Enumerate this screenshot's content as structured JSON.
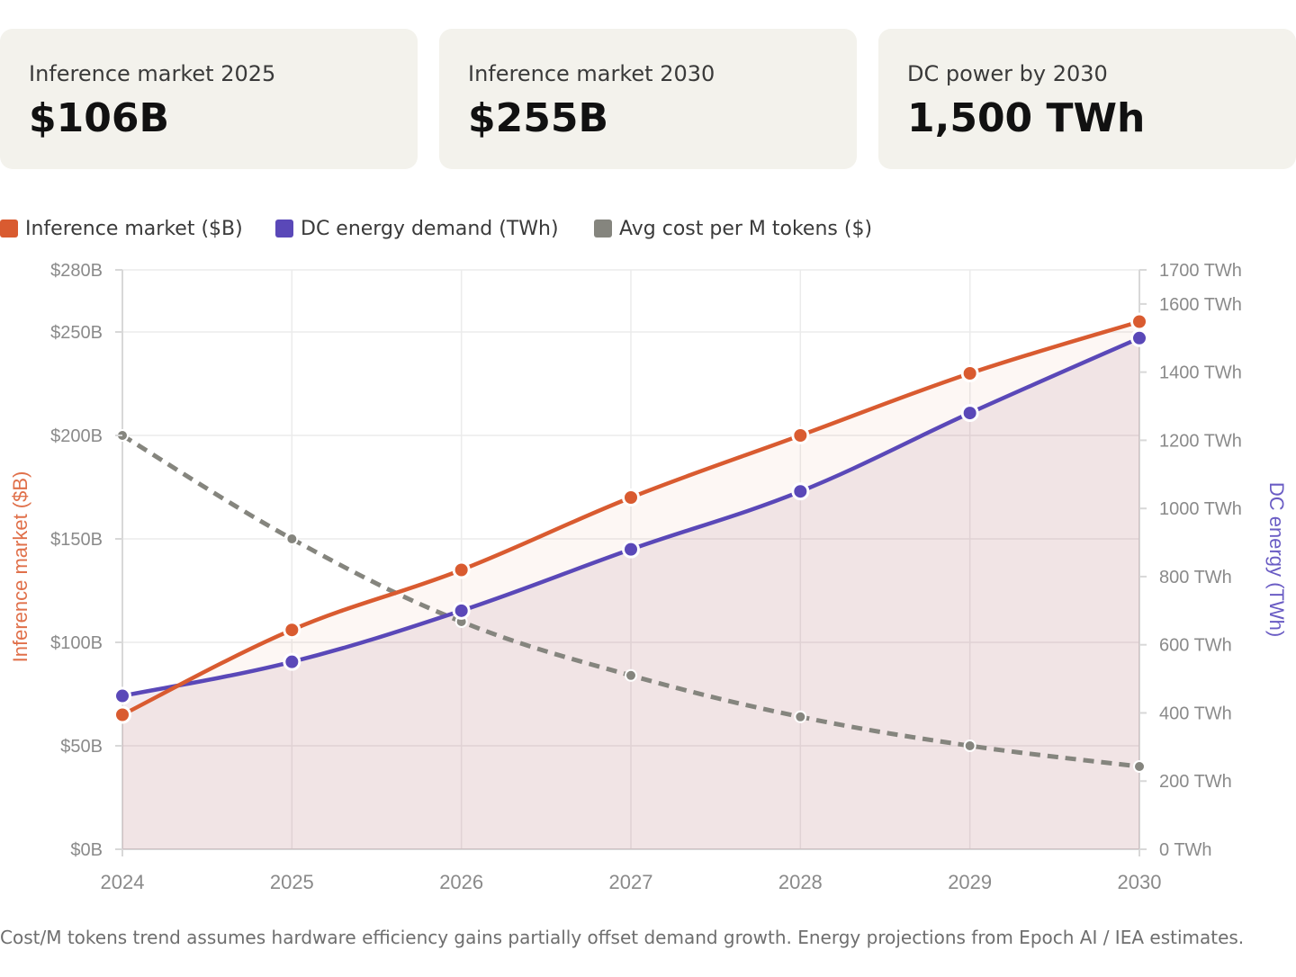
{
  "cards": [
    {
      "label": "Inference market 2025",
      "value": "$106B"
    },
    {
      "label": "Inference market 2030",
      "value": "$255B"
    },
    {
      "label": "DC power by 2030",
      "value": "1,500 TWh"
    }
  ],
  "legend": [
    {
      "label": "Inference market ($B)",
      "color": "#d95b30"
    },
    {
      "label": "DC energy demand (TWh)",
      "color": "#5a48b8"
    },
    {
      "label": "Avg cost per M tokens ($)",
      "color": "#85857e"
    }
  ],
  "footnote": "Cost/M tokens trend assumes hardware efficiency gains partially offset demand growth. Energy projections from Epoch AI / IEA estimates.",
  "chart_data": {
    "type": "line",
    "x": [
      "2024",
      "2025",
      "2026",
      "2027",
      "2028",
      "2029",
      "2030"
    ],
    "series": [
      {
        "name": "Inference market ($B)",
        "axis": "left",
        "values": [
          65,
          106,
          135,
          170,
          200,
          230,
          255
        ],
        "color": "#d95b30",
        "style": "solid"
      },
      {
        "name": "DC energy demand (TWh)",
        "axis": "right",
        "values": [
          450,
          550,
          700,
          880,
          1050,
          1280,
          1500
        ],
        "color": "#5a48b8",
        "style": "solid",
        "fill": true
      },
      {
        "name": "Avg cost per M tokens ($)",
        "axis": "left",
        "values": [
          200,
          150,
          110,
          84,
          64,
          50,
          40
        ],
        "color": "#85857e",
        "style": "dashed"
      }
    ],
    "left_axis": {
      "label": "Inference market ($B)",
      "min": 0,
      "max": 280,
      "ticks": [
        0,
        50,
        100,
        150,
        200,
        250,
        280
      ],
      "tick_labels": [
        "$0B",
        "$50B",
        "$100B",
        "$150B",
        "$200B",
        "$250B",
        "$280B"
      ],
      "color": "#e0704a"
    },
    "right_axis": {
      "label": "DC energy (TWh)",
      "min": 0,
      "max": 1700,
      "ticks": [
        0,
        200,
        400,
        600,
        800,
        1000,
        1200,
        1400,
        1600,
        1700
      ],
      "tick_labels": [
        "0 TWh",
        "200 TWh",
        "400 TWh",
        "600 TWh",
        "800 TWh",
        "1000 TWh",
        "1200 TWh",
        "1400 TWh",
        "1600 TWh",
        "1700 TWh"
      ],
      "color": "#6a5cc4"
    },
    "grid": true
  }
}
